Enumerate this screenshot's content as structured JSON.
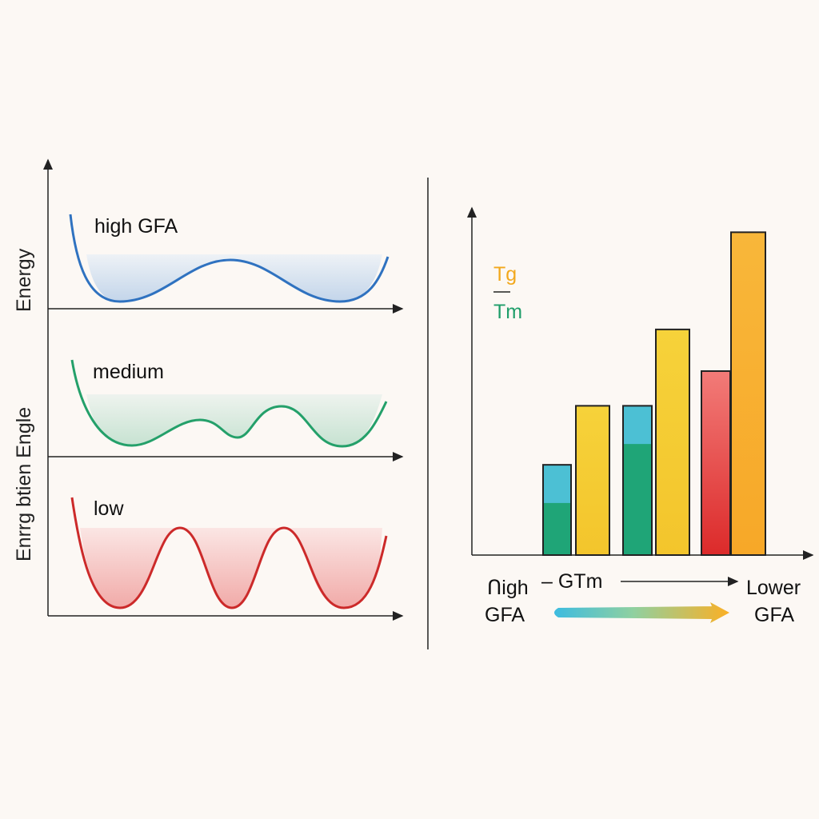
{
  "left_panel": {
    "y_label_top": "Energy",
    "y_label_bottom": "Enrrg btien Engle",
    "curves": [
      {
        "label": "high GFA",
        "color": "#2f72c0",
        "fill": "#c8d8ec"
      },
      {
        "label": "medium",
        "color": "#24a06a",
        "fill": "#cfe6d7"
      },
      {
        "label": "low",
        "color": "#cc2a2a",
        "fill": "#f2b8b6"
      }
    ]
  },
  "right_panel": {
    "legend_numerator": "Tg",
    "legend_numerator_color": "#f2a81d",
    "legend_denominator": "Tm",
    "legend_denominator_color": "#1f9e6a",
    "bars": [
      {
        "height": 0.26,
        "color_top": "#4cc0d4",
        "color_bottom": "#1fa577",
        "lower_fraction": 0.15
      },
      {
        "height": 0.43,
        "color_top": "#f6d23a",
        "color_bottom": "#f3c52c"
      },
      {
        "height": 0.43,
        "color_top": "#4cc0d4",
        "color_bottom": "#1fa577",
        "lower_fraction": 0.32
      },
      {
        "height": 0.65,
        "color_top": "#f6d23a",
        "color_bottom": "#f3c52c"
      },
      {
        "height": 0.53,
        "color_top": "#f27b78",
        "color_bottom": "#dc2a2a"
      },
      {
        "height": 0.93,
        "color_top": "#f8b73a",
        "color_bottom": "#f7a828"
      }
    ],
    "left_label_1": "Ոigh",
    "left_label_2": "GFA",
    "middle_label": "– GTm",
    "right_label_1": "Lower",
    "right_label_2": "GFA"
  }
}
